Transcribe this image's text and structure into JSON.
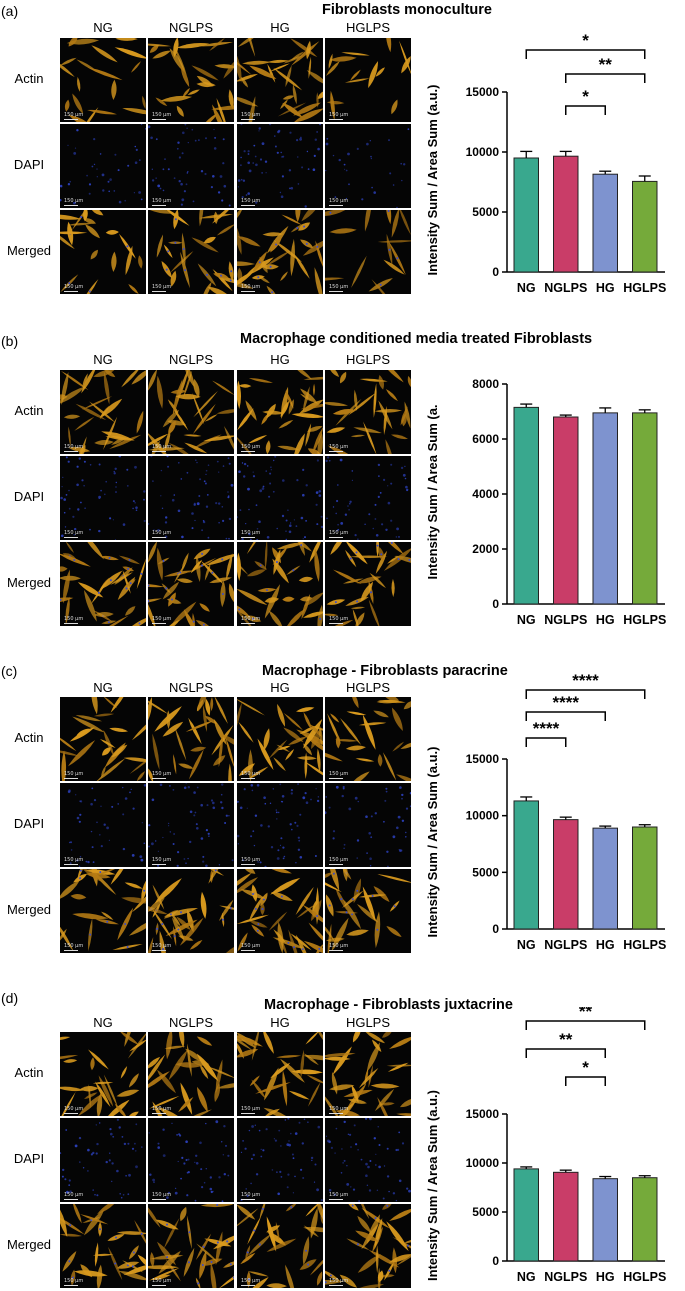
{
  "panels": [
    {
      "label": "(a)",
      "title": "Fibroblasts monoculture",
      "columns": [
        "NG",
        "NGLPS",
        "HG",
        "HGLPS"
      ],
      "rows": [
        "Actin",
        "DAPI",
        "Merged"
      ],
      "scale_bar": "150 μm",
      "density": [
        0.55,
        0.75,
        0.95,
        0.35
      ]
    },
    {
      "label": "(b)",
      "title": "Macrophage conditioned media treated Fibroblasts",
      "columns": [
        "NG",
        "NGLPS",
        "HG",
        "HGLPS"
      ],
      "rows": [
        "Actin",
        "DAPI",
        "Merged"
      ],
      "scale_bar": "150 μm",
      "density": [
        0.9,
        0.95,
        1.0,
        0.8
      ]
    },
    {
      "label": "(c)",
      "title": "Macrophage - Fibroblasts paracrine",
      "columns": [
        "NG",
        "NGLPS",
        "HG",
        "HGLPS"
      ],
      "rows": [
        "Actin",
        "DAPI",
        "Merged"
      ],
      "scale_bar": "150 μm",
      "density": [
        0.7,
        0.85,
        1.0,
        0.7
      ]
    },
    {
      "label": "(d)",
      "title": "Macrophage - Fibroblasts juxtacrine",
      "columns": [
        "NG",
        "NGLPS",
        "HG",
        "HGLPS"
      ],
      "rows": [
        "Actin",
        "DAPI",
        "Merged"
      ],
      "scale_bar": "150 μm",
      "density": [
        0.8,
        0.8,
        0.85,
        0.9
      ]
    }
  ],
  "chart_data": [
    {
      "type": "bar",
      "categories": [
        "NG",
        "NGLPS",
        "HG",
        "HGLPS"
      ],
      "values": [
        9500,
        9650,
        8150,
        7550
      ],
      "errors": [
        550,
        400,
        250,
        450
      ],
      "ylabel": "Intensity Sum / Area Sum (a.u.)",
      "ylim": [
        0,
        15000
      ],
      "yticks": [
        0,
        5000,
        10000,
        15000
      ],
      "colors": [
        "#39a88e",
        "#c93d68",
        "#7e93cf",
        "#75aa3a"
      ],
      "significance": [
        {
          "from": 0,
          "to": 3,
          "label": "*"
        },
        {
          "from": 1,
          "to": 3,
          "label": "**"
        },
        {
          "from": 1,
          "to": 2,
          "label": "*"
        }
      ]
    },
    {
      "type": "bar",
      "categories": [
        "NG",
        "NGLPS",
        "HG",
        "HGLPS"
      ],
      "values": [
        7150,
        6800,
        6950,
        6950
      ],
      "errors": [
        120,
        70,
        180,
        110
      ],
      "ylabel": "Intensity Sum / Area Sum (a.",
      "ylim": [
        0,
        8000
      ],
      "yticks": [
        0,
        2000,
        4000,
        6000,
        8000
      ],
      "colors": [
        "#39a88e",
        "#c93d68",
        "#7e93cf",
        "#75aa3a"
      ],
      "significance": []
    },
    {
      "type": "bar",
      "categories": [
        "NG",
        "NGLPS",
        "HG",
        "HGLPS"
      ],
      "values": [
        11300,
        9650,
        8900,
        9000
      ],
      "errors": [
        350,
        220,
        180,
        200
      ],
      "ylabel": "Intensity Sum / Area Sum (a.u.)",
      "ylim": [
        0,
        15000
      ],
      "yticks": [
        0,
        5000,
        10000,
        15000
      ],
      "colors": [
        "#39a88e",
        "#c93d68",
        "#7e93cf",
        "#75aa3a"
      ],
      "significance": [
        {
          "from": 0,
          "to": 3,
          "label": "****"
        },
        {
          "from": 0,
          "to": 2,
          "label": "****"
        },
        {
          "from": 0,
          "to": 1,
          "label": "****"
        }
      ]
    },
    {
      "type": "bar",
      "categories": [
        "NG",
        "NGLPS",
        "HG",
        "HGLPS"
      ],
      "values": [
        9400,
        9050,
        8400,
        8500
      ],
      "errors": [
        200,
        220,
        220,
        200
      ],
      "ylabel": "Intensity Sum / Area Sum (a.u.)",
      "ylim": [
        0,
        15000
      ],
      "yticks": [
        0,
        5000,
        10000,
        15000
      ],
      "colors": [
        "#39a88e",
        "#c93d68",
        "#7e93cf",
        "#75aa3a"
      ],
      "significance": [
        {
          "from": 0,
          "to": 3,
          "label": "**"
        },
        {
          "from": 0,
          "to": 2,
          "label": "**"
        },
        {
          "from": 1,
          "to": 2,
          "label": "*"
        }
      ]
    }
  ]
}
